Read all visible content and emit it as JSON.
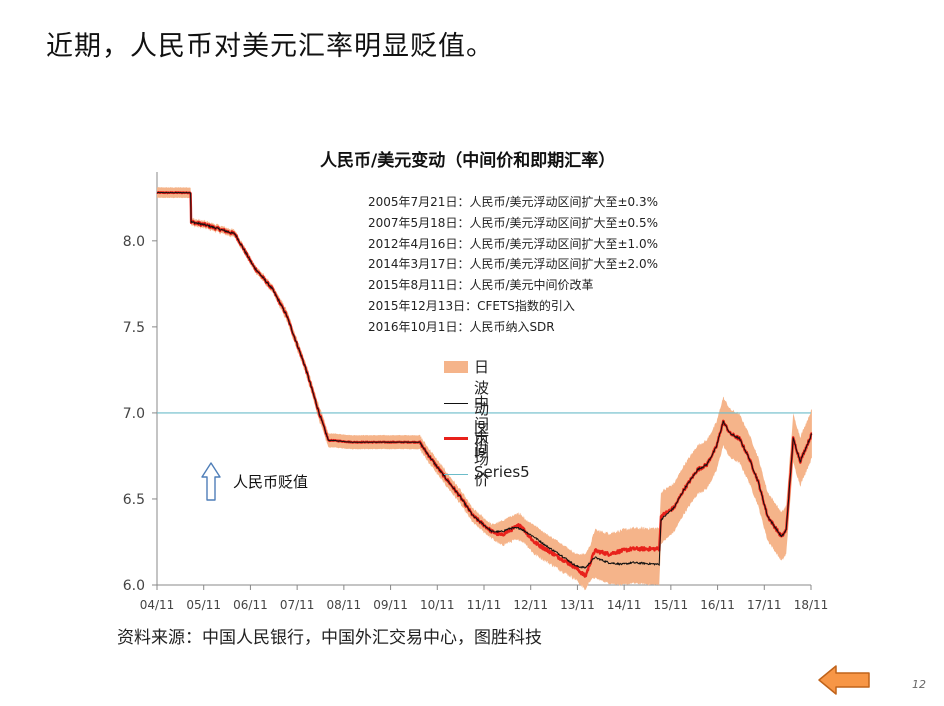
{
  "slide_title": "近期，人民币对美元汇率明显贬值。",
  "page_number": "12",
  "source_note": "资料来源：中国人民银行，中国外汇交易中心，图胜科技",
  "depreciation_label": "人民币贬值",
  "colors": {
    "band": "#f5b48a",
    "mid": "#111111",
    "market": "#e8211b",
    "series5": "#6cbcc9",
    "arrow_fill": "#f79646",
    "arrow_stroke": "#c0631a"
  },
  "icons": {
    "up_arrow": "hollow-up-arrow-icon",
    "back": "left-arrow-icon"
  },
  "chart_data": {
    "type": "line",
    "title": "人民币/美元变动（中间价和即期汇率）",
    "ylim": [
      6.0,
      8.4
    ],
    "yticks": [
      "6.0",
      "6.5",
      "7.0",
      "7.5",
      "8.0"
    ],
    "xticks": [
      "04/11",
      "05/11",
      "06/11",
      "07/11",
      "08/11",
      "09/11",
      "10/11",
      "11/11",
      "12/11",
      "13/11",
      "14/11",
      "15/11",
      "16/11",
      "17/11",
      "18/11"
    ],
    "annotations": [
      "2005年7月21日：人民币/美元浮动区间扩大至±0.3%",
      "2007年5月18日：人民币/美元浮动区间扩大至±0.5%",
      "2012年4月16日：人民币/美元浮动区间扩大至±1.0%",
      "2014年3月17日：人民币/美元浮动区间扩大至±2.0%",
      "2015年8月11日：人民币/美元中间价改革",
      "2015年12月13日：CFETS指数的引入",
      "2016年10月1日：人民币纳入SDR"
    ],
    "legend": [
      "日波动区间",
      "中间价",
      "市场价",
      "Series5"
    ],
    "legend_position": "center",
    "reference_line": 7.0,
    "x": [
      2004.83,
      2005.55,
      2005.56,
      2005.9,
      2006.5,
      2006.9,
      2007.3,
      2007.6,
      2008.0,
      2008.3,
      2008.5,
      2008.6,
      2009.0,
      2009.5,
      2010.0,
      2010.45,
      2010.6,
      2010.9,
      2011.3,
      2011.6,
      2012.0,
      2012.2,
      2012.4,
      2012.6,
      2012.9,
      2013.2,
      2013.5,
      2013.8,
      2014.0,
      2014.2,
      2014.5,
      2014.8,
      2015.0,
      2015.58,
      2015.62,
      2015.9,
      2016.1,
      2016.4,
      2016.6,
      2016.8,
      2016.95,
      2017.1,
      2017.3,
      2017.5,
      2017.7,
      2017.9,
      2018.2,
      2018.3,
      2018.45,
      2018.6,
      2018.85
    ],
    "series": [
      {
        "name": "市场价",
        "values": [
          8.28,
          8.28,
          8.11,
          8.09,
          8.04,
          7.85,
          7.72,
          7.57,
          7.27,
          7.0,
          6.84,
          6.84,
          6.83,
          6.83,
          6.83,
          6.83,
          6.77,
          6.66,
          6.52,
          6.4,
          6.31,
          6.29,
          6.32,
          6.35,
          6.25,
          6.2,
          6.15,
          6.1,
          6.05,
          6.2,
          6.18,
          6.2,
          6.21,
          6.21,
          6.4,
          6.45,
          6.55,
          6.67,
          6.7,
          6.8,
          6.95,
          6.88,
          6.85,
          6.74,
          6.6,
          6.4,
          6.28,
          6.32,
          6.85,
          6.72,
          6.88
        ]
      },
      {
        "name": "中间价",
        "values": [
          8.28,
          8.28,
          8.11,
          8.09,
          8.04,
          7.85,
          7.72,
          7.57,
          7.27,
          7.0,
          6.84,
          6.84,
          6.83,
          6.83,
          6.83,
          6.83,
          6.77,
          6.66,
          6.52,
          6.4,
          6.31,
          6.31,
          6.33,
          6.33,
          6.28,
          6.22,
          6.17,
          6.11,
          6.1,
          6.16,
          6.13,
          6.12,
          6.13,
          6.12,
          6.38,
          6.45,
          6.55,
          6.67,
          6.7,
          6.8,
          6.95,
          6.88,
          6.85,
          6.74,
          6.6,
          6.4,
          6.28,
          6.32,
          6.85,
          6.72,
          6.88
        ]
      }
    ],
    "band_half_width": [
      0.03,
      0.03,
      0.02,
      0.02,
      0.02,
      0.02,
      0.02,
      0.03,
      0.03,
      0.04,
      0.04,
      0.04,
      0.04,
      0.04,
      0.04,
      0.04,
      0.04,
      0.04,
      0.04,
      0.04,
      0.04,
      0.06,
      0.07,
      0.07,
      0.07,
      0.07,
      0.07,
      0.07,
      0.08,
      0.12,
      0.12,
      0.12,
      0.12,
      0.12,
      0.14,
      0.14,
      0.14,
      0.14,
      0.14,
      0.14,
      0.14,
      0.14,
      0.14,
      0.14,
      0.14,
      0.14,
      0.14,
      0.14,
      0.14,
      0.14,
      0.14
    ]
  }
}
